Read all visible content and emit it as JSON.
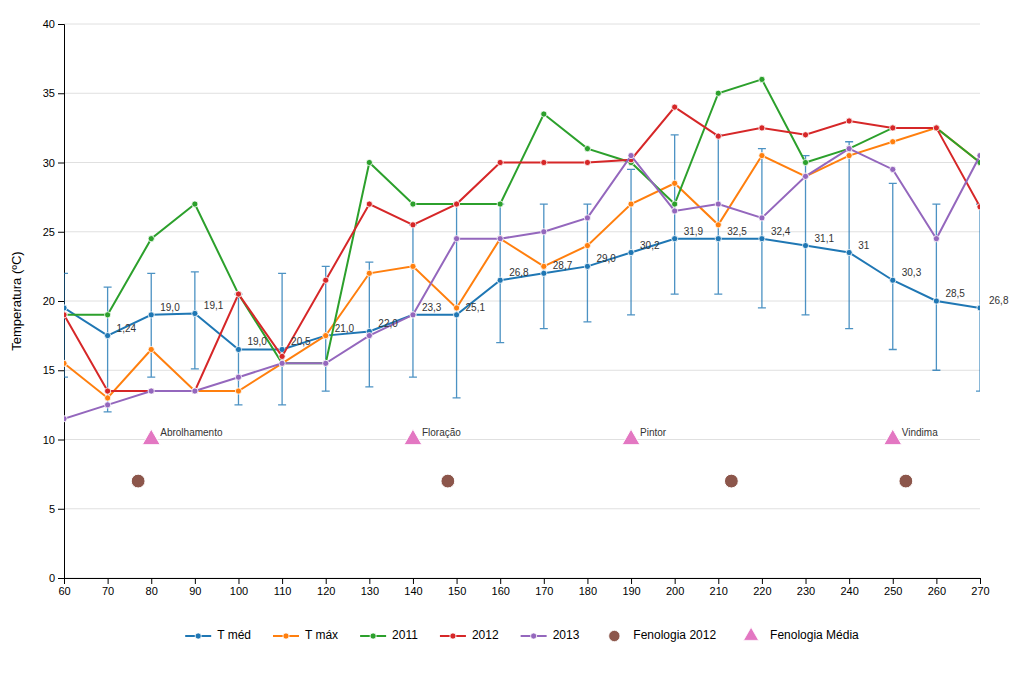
{
  "chart_data": {
    "type": "line",
    "y_label": "Temperatura (ºC)",
    "xlim": [
      60,
      270
    ],
    "xticks": [
      60,
      70,
      80,
      90,
      100,
      110,
      120,
      130,
      140,
      150,
      160,
      170,
      180,
      190,
      200,
      210,
      220,
      230,
      240,
      250,
      260,
      270
    ],
    "ylim": [
      0,
      40
    ],
    "yticks": [
      0,
      5,
      10,
      15,
      20,
      25,
      30,
      35,
      40
    ],
    "grid": true,
    "legend": "bottom",
    "series": [
      {
        "name": "T méd",
        "type": "line",
        "marker": "circle",
        "line_style": "solid",
        "x": [
          60,
          70,
          80,
          90,
          100,
          110,
          120,
          130,
          140,
          150,
          160,
          170,
          180,
          190,
          200,
          210,
          220,
          230,
          240,
          250,
          260,
          270
        ],
        "values": [
          19.5,
          17.5,
          19.0,
          19.1,
          16.5,
          16.5,
          17.5,
          17.8,
          19.0,
          19.0,
          21.5,
          22.0,
          22.5,
          23.5,
          24.5,
          24.5,
          24.5,
          24.0,
          23.5,
          21.5,
          20.0,
          19.5
        ],
        "error_upper": [
          2.5,
          3.5,
          3.0,
          3.0,
          4.0,
          5.5,
          5.0,
          5.0,
          6.5,
          8.0,
          5.5,
          5.0,
          4.5,
          6.0,
          7.5,
          7.5,
          6.5,
          6.5,
          8.0,
          7.0,
          7.0,
          7.5
        ],
        "error_lower": [
          5.0,
          5.5,
          4.5,
          4.0,
          4.0,
          4.0,
          4.0,
          4.0,
          4.5,
          6.0,
          4.5,
          4.0,
          4.0,
          4.5,
          4.0,
          4.0,
          5.0,
          5.0,
          5.5,
          5.0,
          5.0,
          6.0
        ]
      },
      {
        "name": "T máx",
        "type": "line",
        "marker": "circle",
        "line_style": "solid",
        "x": [
          60,
          70,
          80,
          90,
          100,
          110,
          120,
          130,
          140,
          150,
          160,
          170,
          180,
          190,
          200,
          210,
          220,
          230,
          240,
          250,
          260,
          270
        ],
        "values": [
          15.5,
          13.0,
          16.5,
          13.5,
          13.5,
          15.5,
          17.5,
          22.0,
          22.5,
          19.5,
          24.5,
          22.5,
          24.0,
          27.0,
          28.5,
          25.5,
          30.5,
          29.0,
          30.5,
          31.5,
          32.5,
          30.0
        ]
      },
      {
        "name": "2011",
        "type": "line",
        "marker": "circle",
        "line_style": "solid",
        "x": [
          60,
          70,
          80,
          90,
          100,
          110,
          120,
          130,
          140,
          150,
          160,
          170,
          180,
          190,
          200,
          210,
          220,
          230,
          240,
          250,
          260,
          270
        ],
        "values": [
          19.0,
          19.0,
          24.5,
          27.0,
          20.5,
          15.5,
          15.5,
          30.0,
          27.0,
          27.0,
          27.0,
          33.5,
          31.0,
          30.0,
          27.0,
          35.0,
          36.0,
          30.0,
          31.0,
          32.5,
          32.5,
          30.0
        ]
      },
      {
        "name": "2012",
        "type": "line",
        "marker": "circle",
        "line_style": "solid",
        "x": [
          60,
          70,
          80,
          90,
          100,
          110,
          120,
          130,
          140,
          150,
          160,
          170,
          180,
          190,
          200,
          210,
          220,
          230,
          240,
          250,
          260,
          270
        ],
        "values": [
          19.0,
          13.5,
          13.5,
          13.5,
          20.5,
          16.0,
          21.5,
          27.0,
          25.5,
          27.0,
          30.0,
          30.0,
          30.0,
          30.2,
          34.0,
          31.9,
          32.5,
          32.0,
          33.0,
          32.5,
          32.5,
          26.8
        ]
      },
      {
        "name": "2013",
        "type": "line",
        "marker": "circle",
        "line_style": "solid",
        "x": [
          60,
          70,
          80,
          90,
          100,
          110,
          120,
          130,
          140,
          150,
          160,
          170,
          180,
          190,
          200,
          210,
          220,
          230,
          240,
          250,
          260,
          270
        ],
        "values": [
          11.5,
          12.5,
          13.5,
          13.5,
          14.5,
          15.5,
          15.5,
          17.5,
          19.0,
          24.5,
          24.5,
          25.0,
          26.0,
          30.5,
          26.5,
          27.0,
          26.0,
          29.0,
          31.0,
          29.5,
          24.5,
          30.5
        ]
      },
      {
        "name": "Fenologia 2012",
        "type": "scatter",
        "marker": "circle",
        "line_style": "none",
        "x": [
          77,
          148,
          213,
          253
        ],
        "values": [
          7.0,
          7.0,
          7.0,
          7.0
        ]
      },
      {
        "name": "Fenologia Média",
        "type": "scatter",
        "marker": "triangle",
        "line_style": "none",
        "x": [
          80,
          140,
          190,
          250
        ],
        "values": [
          10.0,
          10.0,
          10.0,
          10.0
        ]
      }
    ],
    "annotations": [
      {
        "text": "1,24",
        "x": 70,
        "y": 17.5
      },
      {
        "text": "19,0",
        "x": 80,
        "y": 19.0
      },
      {
        "text": "19,1",
        "x": 90,
        "y": 19.1
      },
      {
        "text": "19,0",
        "x": 100,
        "y": 16.5
      },
      {
        "text": "20,5",
        "x": 110,
        "y": 16.5
      },
      {
        "text": "21,0",
        "x": 120,
        "y": 17.5
      },
      {
        "text": "22,0",
        "x": 130,
        "y": 17.8
      },
      {
        "text": "23,3",
        "x": 140,
        "y": 19.0
      },
      {
        "text": "25,1",
        "x": 150,
        "y": 19.0
      },
      {
        "text": "26,8",
        "x": 160,
        "y": 21.5
      },
      {
        "text": "28,7",
        "x": 170,
        "y": 22.0
      },
      {
        "text": "29,0",
        "x": 180,
        "y": 22.5
      },
      {
        "text": "30,2",
        "x": 190,
        "y": 23.5
      },
      {
        "text": "31,9",
        "x": 200,
        "y": 24.5
      },
      {
        "text": "32,5",
        "x": 210,
        "y": 24.5
      },
      {
        "text": "32,4",
        "x": 220,
        "y": 24.5
      },
      {
        "text": "31,1",
        "x": 230,
        "y": 24.0
      },
      {
        "text": "31",
        "x": 240,
        "y": 23.5
      },
      {
        "text": "30,3",
        "x": 250,
        "y": 21.5
      },
      {
        "text": "28,5",
        "x": 260,
        "y": 20.0
      },
      {
        "text": "26,8",
        "x": 270,
        "y": 19.5
      },
      {
        "text": "Abrolhamento",
        "x": 80,
        "y": 10.0
      },
      {
        "text": "Floração",
        "x": 140,
        "y": 10.0
      },
      {
        "text": "Pintor",
        "x": 190,
        "y": 10.0
      },
      {
        "text": "Vindima",
        "x": 250,
        "y": 10.0
      }
    ]
  }
}
